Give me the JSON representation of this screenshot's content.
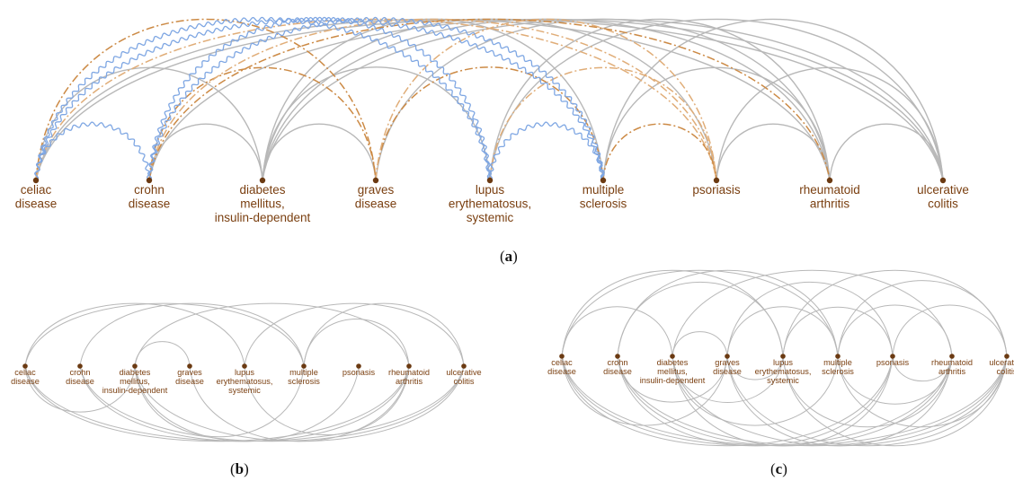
{
  "nodes": [
    {
      "id": "celiac",
      "label": [
        "celiac",
        "disease"
      ]
    },
    {
      "id": "crohn",
      "label": [
        "crohn",
        "disease"
      ]
    },
    {
      "id": "diabetes",
      "label": [
        "diabetes",
        "mellitus,",
        "insulin-dependent"
      ]
    },
    {
      "id": "graves",
      "label": [
        "graves",
        "disease"
      ]
    },
    {
      "id": "lupus",
      "label": [
        "lupus",
        "erythematosus,",
        "systemic"
      ]
    },
    {
      "id": "ms",
      "label": [
        "multiple",
        "sclerosis"
      ]
    },
    {
      "id": "psoriasis",
      "label": [
        "psoriasis"
      ]
    },
    {
      "id": "ra",
      "label": [
        "rheumatoid",
        "arthritis"
      ]
    },
    {
      "id": "uc",
      "label": [
        "ulcerative",
        "colitis"
      ]
    }
  ],
  "panels": [
    {
      "id": "a",
      "caption": {
        "open": "(",
        "letter": "a",
        "close": ")"
      },
      "edges": [
        {
          "s": 0,
          "t": 1,
          "style": "wavy"
        },
        {
          "s": 0,
          "t": 4,
          "style": "wavy"
        },
        {
          "s": 0,
          "t": 5,
          "style": "wavy"
        },
        {
          "s": 1,
          "t": 4,
          "style": "wavy"
        },
        {
          "s": 1,
          "t": 5,
          "style": "wavy"
        },
        {
          "s": 4,
          "t": 5,
          "style": "wavy"
        },
        {
          "s": 0,
          "t": 3,
          "style": "dashdot"
        },
        {
          "s": 0,
          "t": 6,
          "style": "dashdot"
        },
        {
          "s": 1,
          "t": 3,
          "style": "dashdot"
        },
        {
          "s": 1,
          "t": 6,
          "style": "dashdot"
        },
        {
          "s": 3,
          "t": 5,
          "style": "dashdot"
        },
        {
          "s": 3,
          "t": 6,
          "style": "dashdot"
        },
        {
          "s": 5,
          "t": 6,
          "style": "dashdot"
        },
        {
          "s": 4,
          "t": 6,
          "style": "dashdot"
        },
        {
          "s": 1,
          "t": 7,
          "style": "dashdot"
        },
        {
          "s": 0,
          "t": 2,
          "style": "gray"
        },
        {
          "s": 0,
          "t": 7,
          "style": "gray"
        },
        {
          "s": 0,
          "t": 8,
          "style": "gray"
        },
        {
          "s": 1,
          "t": 2,
          "style": "gray"
        },
        {
          "s": 1,
          "t": 8,
          "style": "gray"
        },
        {
          "s": 2,
          "t": 3,
          "style": "gray"
        },
        {
          "s": 2,
          "t": 4,
          "style": "gray"
        },
        {
          "s": 2,
          "t": 5,
          "style": "gray"
        },
        {
          "s": 2,
          "t": 7,
          "style": "gray"
        },
        {
          "s": 2,
          "t": 8,
          "style": "gray"
        },
        {
          "s": 3,
          "t": 7,
          "style": "gray"
        },
        {
          "s": 4,
          "t": 7,
          "style": "gray"
        },
        {
          "s": 4,
          "t": 8,
          "style": "gray"
        },
        {
          "s": 5,
          "t": 7,
          "style": "gray"
        },
        {
          "s": 5,
          "t": 8,
          "style": "gray"
        },
        {
          "s": 6,
          "t": 7,
          "style": "gray"
        },
        {
          "s": 6,
          "t": 8,
          "style": "gray"
        },
        {
          "s": 7,
          "t": 8,
          "style": "gray"
        },
        {
          "s": 2,
          "t": 6,
          "style": "gray"
        }
      ]
    },
    {
      "id": "b",
      "caption": {
        "open": "(",
        "letter": "b",
        "close": ")"
      },
      "edges": [
        {
          "s": 0,
          "t": 5,
          "side": "up"
        },
        {
          "s": 0,
          "t": 4,
          "side": "up"
        },
        {
          "s": 1,
          "t": 5,
          "side": "up"
        },
        {
          "s": 2,
          "t": 7,
          "side": "up"
        },
        {
          "s": 4,
          "t": 8,
          "side": "up"
        },
        {
          "s": 5,
          "t": 7,
          "side": "up"
        },
        {
          "s": 2,
          "t": 3,
          "side": "up"
        },
        {
          "s": 5,
          "t": 8,
          "side": "up"
        },
        {
          "s": 0,
          "t": 7,
          "side": "down"
        },
        {
          "s": 0,
          "t": 8,
          "side": "down"
        },
        {
          "s": 1,
          "t": 7,
          "side": "down"
        },
        {
          "s": 1,
          "t": 8,
          "side": "down"
        },
        {
          "s": 2,
          "t": 8,
          "side": "down"
        },
        {
          "s": 2,
          "t": 6,
          "side": "down"
        },
        {
          "s": 3,
          "t": 7,
          "side": "down"
        },
        {
          "s": 0,
          "t": 2,
          "side": "down"
        },
        {
          "s": 2,
          "t": 5,
          "side": "down"
        },
        {
          "s": 4,
          "t": 7,
          "side": "down"
        }
      ]
    },
    {
      "id": "c",
      "caption": {
        "open": "(",
        "letter": "c",
        "close": ")"
      },
      "edges": [
        {
          "s": 0,
          "t": 5,
          "side": "up"
        },
        {
          "s": 0,
          "t": 4,
          "side": "up"
        },
        {
          "s": 1,
          "t": 5,
          "side": "up"
        },
        {
          "s": 2,
          "t": 7,
          "side": "up"
        },
        {
          "s": 4,
          "t": 8,
          "side": "up"
        },
        {
          "s": 5,
          "t": 7,
          "side": "up"
        },
        {
          "s": 2,
          "t": 3,
          "side": "up"
        },
        {
          "s": 5,
          "t": 8,
          "side": "up"
        },
        {
          "s": 0,
          "t": 2,
          "side": "up"
        },
        {
          "s": 3,
          "t": 6,
          "side": "up"
        },
        {
          "s": 4,
          "t": 6,
          "side": "up"
        },
        {
          "s": 1,
          "t": 4,
          "side": "up"
        },
        {
          "s": 6,
          "t": 8,
          "side": "up"
        },
        {
          "s": 3,
          "t": 5,
          "side": "up"
        },
        {
          "s": 0,
          "t": 7,
          "side": "down"
        },
        {
          "s": 0,
          "t": 8,
          "side": "down"
        },
        {
          "s": 1,
          "t": 7,
          "side": "down"
        },
        {
          "s": 1,
          "t": 8,
          "side": "down"
        },
        {
          "s": 2,
          "t": 8,
          "side": "down"
        },
        {
          "s": 2,
          "t": 6,
          "side": "down"
        },
        {
          "s": 3,
          "t": 7,
          "side": "down"
        },
        {
          "s": 3,
          "t": 8,
          "side": "down"
        },
        {
          "s": 2,
          "t": 5,
          "side": "down"
        },
        {
          "s": 4,
          "t": 7,
          "side": "down"
        },
        {
          "s": 0,
          "t": 6,
          "side": "down"
        },
        {
          "s": 1,
          "t": 6,
          "side": "down"
        },
        {
          "s": 5,
          "t": 7,
          "side": "down"
        },
        {
          "s": 4,
          "t": 8,
          "side": "down"
        },
        {
          "s": 0,
          "t": 3,
          "side": "down"
        },
        {
          "s": 1,
          "t": 3,
          "side": "down"
        },
        {
          "s": 2,
          "t": 4,
          "side": "down"
        },
        {
          "s": 3,
          "t": 4,
          "side": "down"
        },
        {
          "s": 5,
          "t": 8,
          "side": "down"
        },
        {
          "s": 6,
          "t": 7,
          "side": "down"
        }
      ]
    }
  ],
  "colors": {
    "node": "#6b3a12",
    "label": "#7a3f10",
    "gray_edge": "#b8b8b8",
    "wavy_edge": "#7fa7e3",
    "dashdot_edge": "#cc8a45",
    "dashdot_edge_light": "#e0ad78"
  }
}
